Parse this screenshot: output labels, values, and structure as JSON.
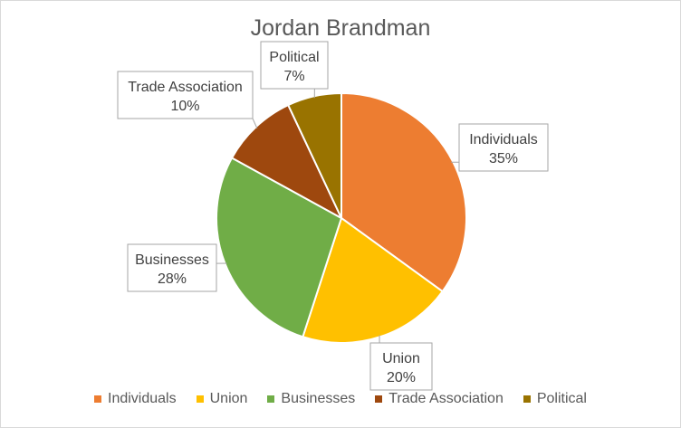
{
  "chart_data": {
    "type": "pie",
    "title": "Jordan Brandman",
    "categories": [
      "Individuals",
      "Union",
      "Businesses",
      "Trade Association",
      "Political"
    ],
    "values": [
      35,
      20,
      28,
      10,
      7
    ],
    "labels": [
      "35%",
      "20%",
      "28%",
      "10%",
      "7%"
    ],
    "colors": [
      "#ED7D31",
      "#FFC000",
      "#70AD47",
      "#9E480E",
      "#997300"
    ],
    "legend": "bottom"
  }
}
